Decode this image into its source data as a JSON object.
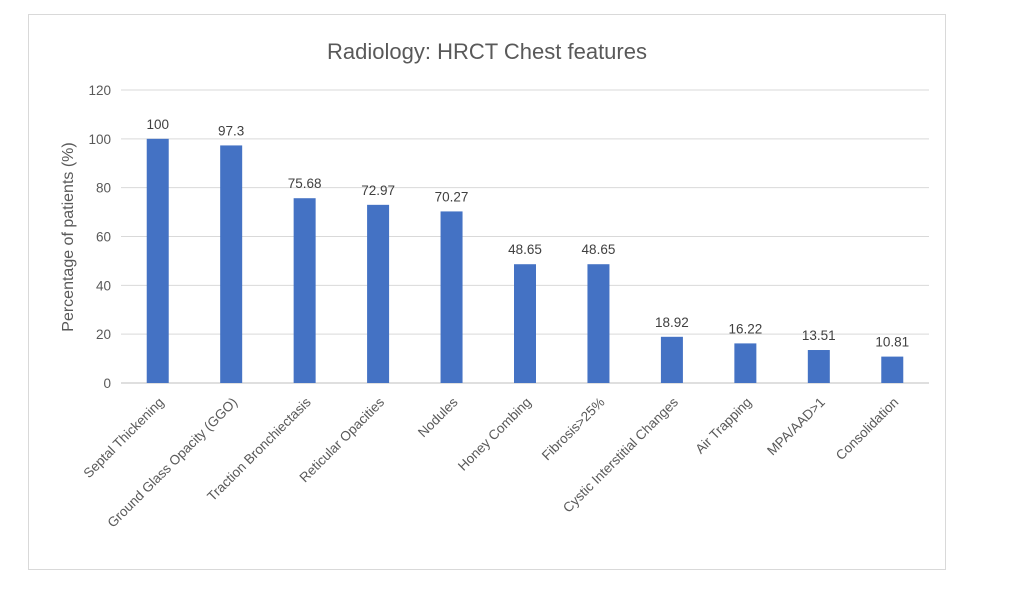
{
  "chart_data": {
    "type": "bar",
    "title": "Radiology: HRCT Chest features",
    "xlabel": "",
    "ylabel": "Percentage of patients (%)",
    "ylim": [
      0,
      120
    ],
    "yticks": [
      0,
      20,
      40,
      60,
      80,
      100,
      120
    ],
    "grid": true,
    "legend": "none",
    "bar_color": "#4472c4",
    "categories": [
      "Septal Thickening",
      "Ground Glass Opacity (GGO)",
      "Traction Bronchiectasis",
      "Reticular Opacities",
      "Nodules",
      "Honey Combing",
      "Fibrosis>25%",
      "Cystic Interstitial Changes",
      "Air Trapping",
      "MPA/AAD>1",
      "Consolidation"
    ],
    "values": [
      100,
      97.3,
      75.68,
      72.97,
      70.27,
      48.65,
      48.65,
      18.92,
      16.22,
      13.51,
      10.81
    ],
    "value_labels": [
      "100",
      "97.3",
      "75.68",
      "72.97",
      "70.27",
      "48.65",
      "48.65",
      "18.92",
      "16.22",
      "13.51",
      "10.81"
    ]
  }
}
